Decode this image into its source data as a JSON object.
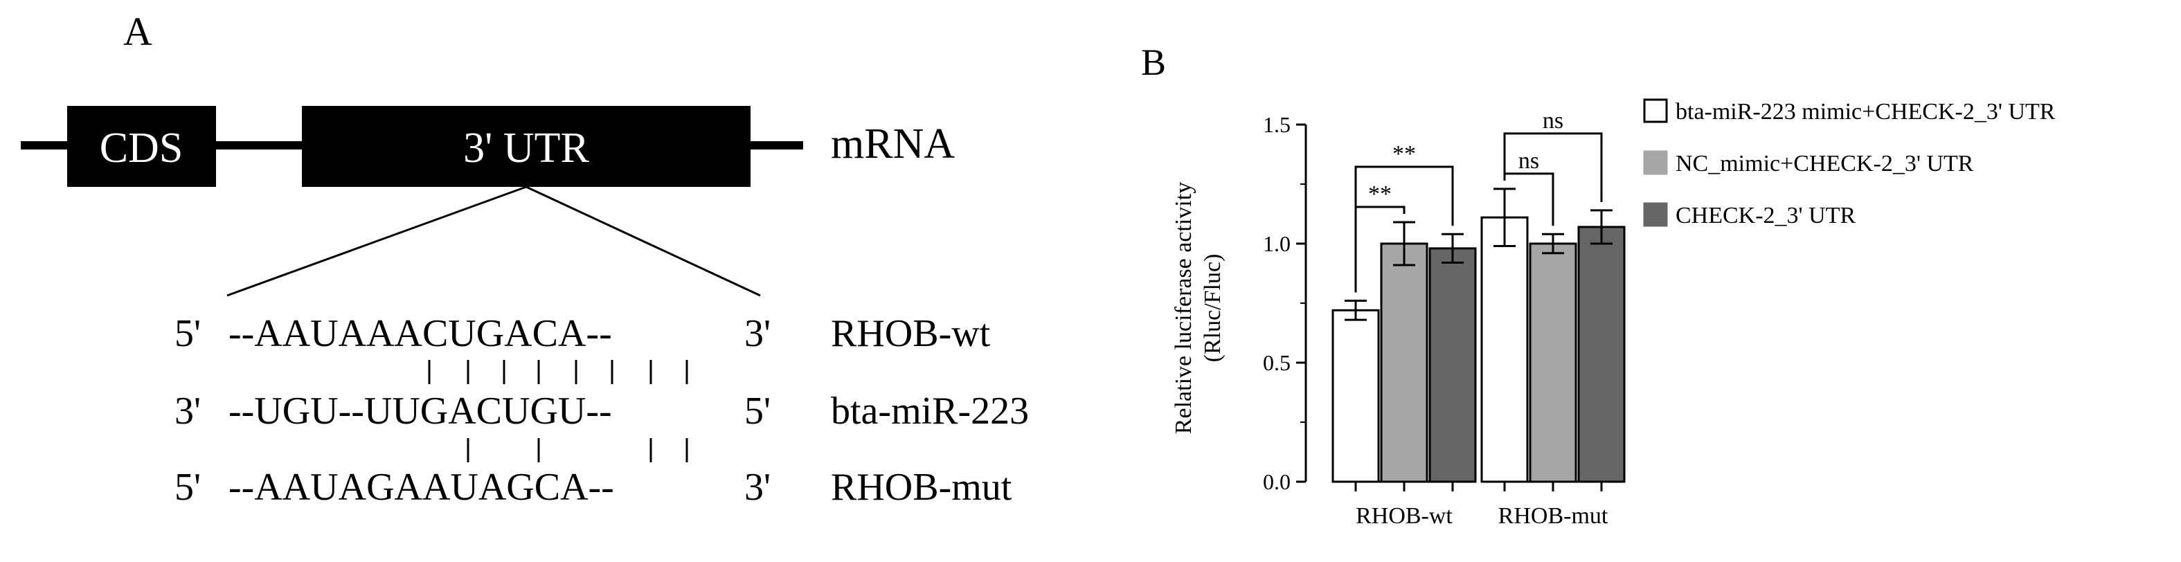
{
  "panel_a": {
    "label": "A",
    "cds_label": "CDS",
    "utr_label": "3' UTR",
    "mrna_label": "mRNA",
    "rows": [
      {
        "five_prime": "5'",
        "sequence": "--AAUAAACUGACA--",
        "three_prime": "3'",
        "name": "RHOB-wt"
      },
      {
        "five_prime": "3'",
        "sequence": "--UGU--UUGACUGU--",
        "three_prime": "5'",
        "name": "bta-miR-223"
      },
      {
        "five_prime": "5'",
        "sequence": "--AAUAGAAUAGCA--",
        "three_prime": "3'",
        "name": "RHOB-mut"
      }
    ],
    "pairing_top": "| | | | | | | |",
    "pairing_bottom": "|       |       | |"
  },
  "chart_data": {
    "type": "bar",
    "panel_label": "B",
    "ylabel_line1": "Relative luciferase activity",
    "ylabel_line2": "(Rluc/Fluc)",
    "ylim": [
      0.0,
      1.5
    ],
    "yticks": [
      "0.0",
      "0.5",
      "1.0",
      "1.5"
    ],
    "categories": [
      "RHOB-wt",
      "RHOB-mut"
    ],
    "series": [
      {
        "name": "bta-miR-223 mimic+CHECK-2_3' UTR",
        "color": "#ffffff",
        "values": [
          0.72,
          1.11
        ],
        "errors": [
          0.04,
          0.12
        ]
      },
      {
        "name": "NC_mimic+CHECK-2_3' UTR",
        "color": "#a6a6a6",
        "values": [
          1.0,
          1.0
        ],
        "errors": [
          0.09,
          0.04
        ]
      },
      {
        "name": "CHECK-2_3' UTR",
        "color": "#666666",
        "values": [
          0.98,
          1.07
        ],
        "errors": [
          0.06,
          0.07
        ]
      }
    ],
    "significance": [
      {
        "group": 0,
        "from": 0,
        "to": 1,
        "label": "**"
      },
      {
        "group": 0,
        "from": 0,
        "to": 2,
        "label": "**"
      },
      {
        "group": 1,
        "from": 0,
        "to": 1,
        "label": "ns"
      },
      {
        "group": 1,
        "from": 0,
        "to": 2,
        "label": "ns"
      }
    ],
    "legend_position": "right"
  }
}
